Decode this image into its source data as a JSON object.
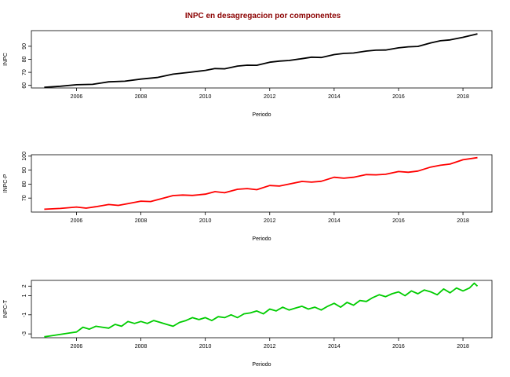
{
  "title": "INPC en desagregacion por componentes",
  "chart_data": [
    {
      "type": "line",
      "ylabel": "INPC",
      "xlabel": "Periodo",
      "color": "#000000",
      "xlim": [
        2004.6,
        2018.9
      ],
      "ylim": [
        58,
        102
      ],
      "xticks": [
        "2006",
        "2008",
        "2010",
        "2012",
        "2014",
        "2016",
        "2018"
      ],
      "yticks": [
        "60",
        "70",
        "80",
        "90"
      ],
      "series": [
        {
          "x": [
            2005.0,
            2005.5,
            2006.0,
            2006.5,
            2007.0,
            2007.5,
            2008.0,
            2008.5,
            2009.0,
            2009.5,
            2010.0,
            2010.3,
            2010.6,
            2011.0,
            2011.3,
            2011.6,
            2012.0,
            2012.3,
            2012.6,
            2013.0,
            2013.3,
            2013.6,
            2014.0,
            2014.3,
            2014.6,
            2015.0,
            2015.3,
            2015.6,
            2016.0,
            2016.3,
            2016.6,
            2017.0,
            2017.3,
            2017.6,
            2018.0,
            2018.45
          ],
          "values": [
            58.5,
            59.3,
            60.5,
            60.8,
            62.7,
            63.2,
            64.8,
            66.0,
            68.6,
            70.0,
            71.5,
            72.9,
            72.7,
            74.8,
            75.5,
            75.4,
            77.8,
            78.6,
            79.1,
            80.5,
            81.6,
            81.4,
            83.6,
            84.5,
            84.8,
            86.3,
            87.0,
            87.1,
            88.8,
            89.6,
            89.9,
            92.6,
            94.2,
            94.9,
            96.9,
            99.5
          ]
        }
      ]
    },
    {
      "type": "line",
      "ylabel": "INPC-P",
      "xlabel": "Periodo",
      "color": "#ff0000",
      "xlim": [
        2004.6,
        2018.9
      ],
      "ylim": [
        60,
        101
      ],
      "xticks": [
        "2006",
        "2008",
        "2010",
        "2012",
        "2014",
        "2016",
        "2018"
      ],
      "yticks": [
        "70",
        "80",
        "90",
        "100"
      ],
      "series": [
        {
          "x": [
            2005.0,
            2005.5,
            2006.0,
            2006.3,
            2006.6,
            2007.0,
            2007.3,
            2007.6,
            2008.0,
            2008.3,
            2008.6,
            2009.0,
            2009.3,
            2009.6,
            2010.0,
            2010.3,
            2010.6,
            2011.0,
            2011.3,
            2011.6,
            2012.0,
            2012.3,
            2012.6,
            2013.0,
            2013.3,
            2013.6,
            2014.0,
            2014.3,
            2014.6,
            2015.0,
            2015.3,
            2015.6,
            2016.0,
            2016.3,
            2016.6,
            2017.0,
            2017.3,
            2017.6,
            2018.0,
            2018.45
          ],
          "values": [
            62.0,
            62.6,
            63.6,
            62.8,
            63.8,
            65.4,
            64.8,
            66.0,
            67.8,
            67.5,
            69.3,
            71.8,
            72.2,
            71.9,
            72.8,
            74.6,
            73.8,
            76.3,
            76.8,
            76.0,
            79.0,
            78.6,
            80.0,
            81.9,
            81.4,
            82.0,
            84.9,
            84.2,
            84.9,
            86.8,
            86.6,
            87.0,
            89.0,
            88.5,
            89.3,
            92.2,
            93.5,
            94.3,
            97.4,
            98.9
          ]
        }
      ]
    },
    {
      "type": "line",
      "ylabel": "INPC-T",
      "xlabel": "Periodo",
      "color": "#00cc00",
      "xlim": [
        2004.6,
        2018.9
      ],
      "ylim": [
        -3.4,
        2.6
      ],
      "xticks": [
        "2006",
        "2008",
        "2010",
        "2012",
        "2014",
        "2016",
        "2018"
      ],
      "yticks": [
        "-3",
        "-1",
        "1",
        "2"
      ],
      "series": [
        {
          "x": [
            2005.0,
            2005.2,
            2005.4,
            2005.6,
            2005.8,
            2006.0,
            2006.2,
            2006.4,
            2006.6,
            2006.8,
            2007.0,
            2007.2,
            2007.4,
            2007.6,
            2007.8,
            2008.0,
            2008.2,
            2008.4,
            2008.6,
            2008.8,
            2009.0,
            2009.2,
            2009.4,
            2009.6,
            2009.8,
            2010.0,
            2010.2,
            2010.4,
            2010.6,
            2010.8,
            2011.0,
            2011.2,
            2011.4,
            2011.6,
            2011.8,
            2012.0,
            2012.2,
            2012.4,
            2012.6,
            2012.8,
            2013.0,
            2013.2,
            2013.4,
            2013.6,
            2013.8,
            2014.0,
            2014.2,
            2014.4,
            2014.6,
            2014.8,
            2015.0,
            2015.2,
            2015.4,
            2015.6,
            2015.8,
            2016.0,
            2016.2,
            2016.4,
            2016.6,
            2016.8,
            2017.0,
            2017.2,
            2017.4,
            2017.6,
            2017.8,
            2018.0,
            2018.2,
            2018.35,
            2018.45
          ],
          "values": [
            -3.3,
            -3.2,
            -3.1,
            -3.0,
            -2.9,
            -2.8,
            -2.3,
            -2.5,
            -2.2,
            -2.3,
            -2.4,
            -2.0,
            -2.2,
            -1.7,
            -1.9,
            -1.7,
            -1.9,
            -1.6,
            -1.8,
            -2.0,
            -2.2,
            -1.8,
            -1.6,
            -1.3,
            -1.5,
            -1.3,
            -1.6,
            -1.2,
            -1.3,
            -1.0,
            -1.3,
            -0.9,
            -0.8,
            -0.6,
            -0.9,
            -0.4,
            -0.6,
            -0.2,
            -0.5,
            -0.3,
            -0.1,
            -0.4,
            -0.2,
            -0.5,
            -0.1,
            0.2,
            -0.2,
            0.3,
            0.0,
            0.5,
            0.4,
            0.8,
            1.1,
            0.9,
            1.2,
            1.4,
            1.0,
            1.5,
            1.2,
            1.6,
            1.4,
            1.1,
            1.7,
            1.3,
            1.8,
            1.5,
            1.8,
            2.3,
            2.0
          ]
        }
      ]
    }
  ]
}
